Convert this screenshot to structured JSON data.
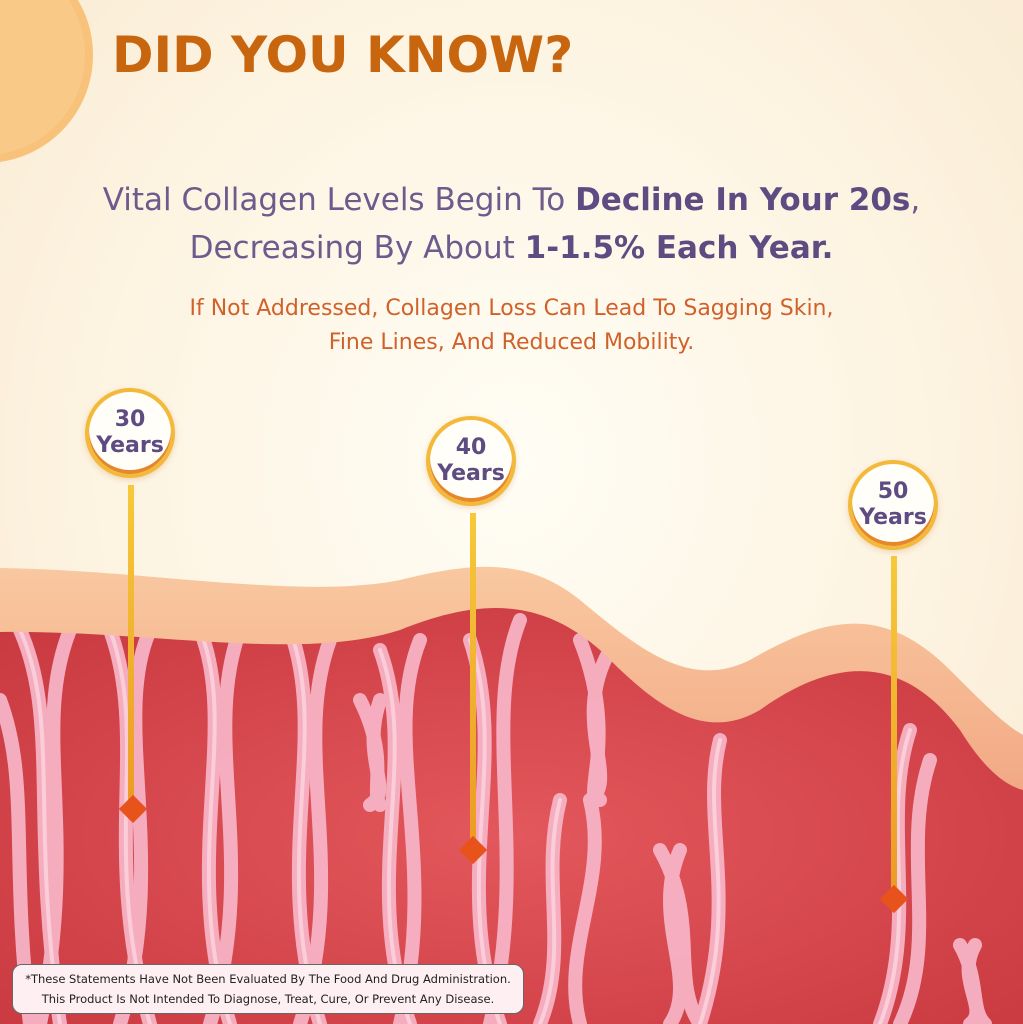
{
  "headline": "DID YOU KNOW?",
  "subheading": {
    "line1_regular": "Vital Collagen Levels Begin To ",
    "line1_bold": "Decline In Your 20s",
    "line1_tail": ",",
    "line2_regular": "Decreasing By About ",
    "line2_bold": "1-1.5% Each Year."
  },
  "note": {
    "line1": "If Not Addressed, Collagen Loss Can Lead To Sagging Skin,",
    "line2": "Fine Lines, And Reduced Mobility."
  },
  "markers": [
    {
      "age": "30",
      "unit": "Years"
    },
    {
      "age": "40",
      "unit": "Years"
    },
    {
      "age": "50",
      "unit": "Years"
    }
  ],
  "disclaimer": {
    "line1": "*These Statements Have Not Been Evaluated By The Food And Drug Administration.",
    "line2": "This Product Is Not Intended To Diagnose, Treat, Cure, Or Prevent Any Disease."
  },
  "colors": {
    "headline": "#c8660f",
    "subheading": "#6e5a8c",
    "note": "#d0612a",
    "tissue": "#d9464c",
    "skin": "#f6b890",
    "fiber": "#f5a9bd",
    "pin": "#f0b52a",
    "diamond": "#e8531c"
  }
}
